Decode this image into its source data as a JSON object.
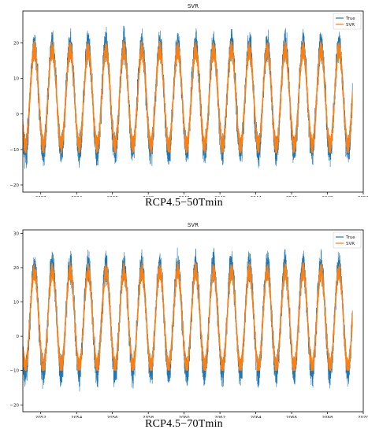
{
  "chart_data": [
    {
      "type": "line",
      "title": "SVR",
      "caption": "RCP4.5−50Tmin",
      "xlim": [
        2031,
        2050
      ],
      "x_ticks": [
        "2032",
        "2034",
        "2036",
        "2038",
        "2040",
        "2042",
        "2044",
        "2046",
        "2048",
        "2050"
      ],
      "ylim": [
        -22,
        29
      ],
      "y_ticks": [
        "-20",
        "-10",
        "0",
        "10",
        "20"
      ],
      "grid": false,
      "legend": "top-right",
      "series": [
        {
          "name": "True",
          "color": "#1f77b4"
        },
        {
          "name": "SVR",
          "color": "#ff7f0e"
        }
      ],
      "cycle": {
        "start_year": 2031,
        "end_year": 2049.4,
        "periods_per_year": 1,
        "mean": 4.5,
        "amplitude": 15
      },
      "true_range": [
        -21,
        28
      ],
      "svr_range": [
        -11,
        25
      ]
    },
    {
      "type": "line",
      "title": "SVR",
      "caption": "RCP4.5−70Tmin",
      "xlim": [
        2051,
        2070
      ],
      "x_ticks": [
        "2052",
        "2054",
        "2056",
        "2058",
        "2060",
        "2062",
        "2064",
        "2066",
        "2068",
        "2070"
      ],
      "ylim": [
        -22,
        31
      ],
      "y_ticks": [
        "-20",
        "-10",
        "0",
        "10",
        "20",
        "30"
      ],
      "grid": false,
      "legend": "top-right",
      "series": [
        {
          "name": "True",
          "color": "#1f77b4"
        },
        {
          "name": "SVR",
          "color": "#ff7f0e"
        }
      ],
      "cycle": {
        "start_year": 2051,
        "end_year": 2069.4,
        "periods_per_year": 1,
        "mean": 5,
        "amplitude": 15.5
      },
      "true_range": [
        -20,
        29
      ],
      "svr_range": [
        -10,
        27
      ]
    }
  ]
}
